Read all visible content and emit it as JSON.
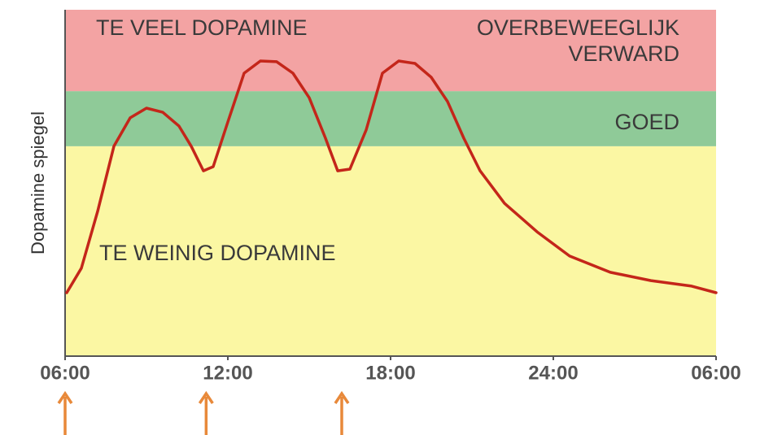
{
  "chart_data": {
    "type": "line",
    "y_label": "Dopamine spiegel",
    "xlim": [
      6,
      30
    ],
    "ylim": [
      0,
      100
    ],
    "xticks": [
      {
        "value": 6,
        "label": "06:00"
      },
      {
        "value": 12,
        "label": "12:00"
      },
      {
        "value": 18,
        "label": "18:00"
      },
      {
        "value": 24,
        "label": "24:00"
      },
      {
        "value": 30,
        "label": "06:00"
      }
    ],
    "bands": [
      {
        "labels": [
          "TE WEINIG DOPAMINE"
        ],
        "from": 0,
        "to": 60.6,
        "color": "#fbf7a3"
      },
      {
        "labels": [
          "GOED"
        ],
        "from": 60.6,
        "to": 76.5,
        "color": "#8fca98"
      },
      {
        "labels": [
          "TE VEEL DOPAMINE",
          "OVERBEWEEGLIJK",
          "VERWARD"
        ],
        "from": 76.5,
        "to": 100,
        "color": "#f3a3a3"
      }
    ],
    "x": [
      6.06,
      6.6,
      7.2,
      7.8,
      8.4,
      9.0,
      9.6,
      10.2,
      10.65,
      11.1,
      11.46,
      12.0,
      12.6,
      13.2,
      13.8,
      14.4,
      15.0,
      15.6,
      16.05,
      16.5,
      17.1,
      17.7,
      18.3,
      18.9,
      19.5,
      20.1,
      20.7,
      21.3,
      22.2,
      23.4,
      24.6,
      26.1,
      27.6,
      29.1,
      30.0
    ],
    "values": [
      18.3,
      25.4,
      41.8,
      60.6,
      68.8,
      71.6,
      70.4,
      66.4,
      60.6,
      53.5,
      54.7,
      67.6,
      81.7,
      85.2,
      85.0,
      81.7,
      74.6,
      62.9,
      53.5,
      54.0,
      65.3,
      81.7,
      85.2,
      84.5,
      80.5,
      73.5,
      62.9,
      53.5,
      44.1,
      35.9,
      28.9,
      24.2,
      21.8,
      20.2,
      18.3
    ],
    "color": "#c4261a",
    "arrows": [
      6,
      11.2,
      16.2
    ],
    "arrow_color": "#e8893a"
  }
}
